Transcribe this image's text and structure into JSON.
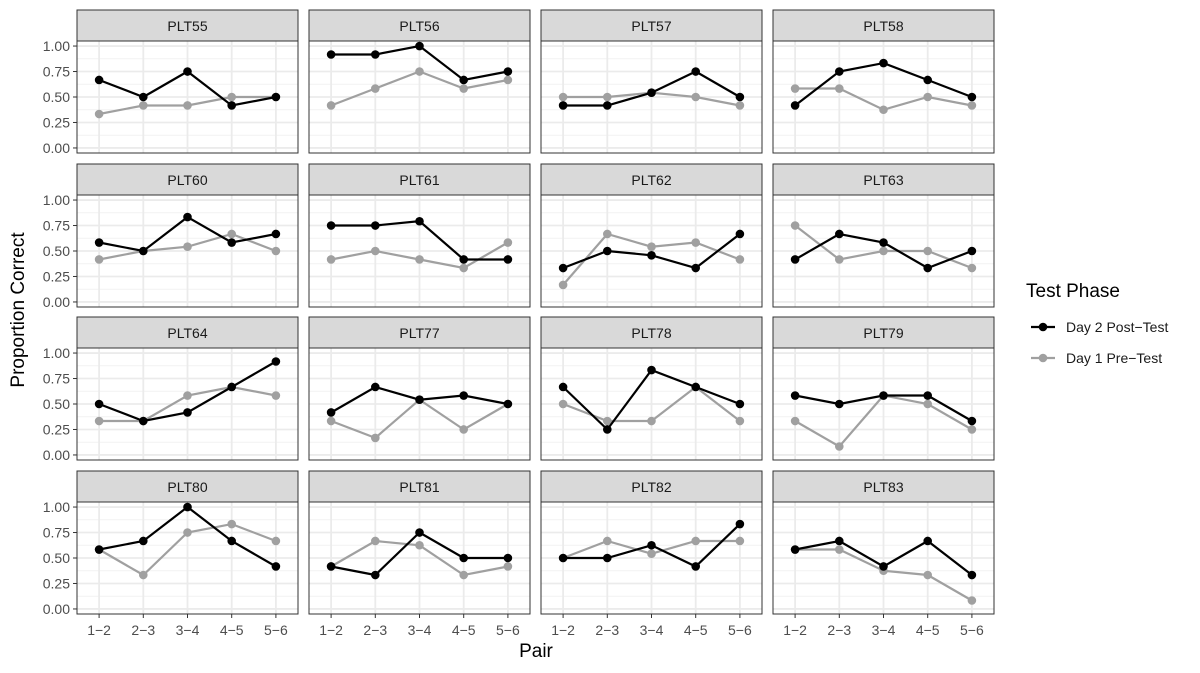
{
  "chart_data": {
    "type": "line",
    "xlabel": "Pair",
    "ylabel": "Proportion Correct",
    "categories": [
      "1−2",
      "2−3",
      "3−4",
      "4−5",
      "5−6"
    ],
    "yticks": [
      "0.00",
      "0.25",
      "0.50",
      "0.75",
      "1.00"
    ],
    "ylim": [
      0,
      1
    ],
    "grid": true,
    "legend": {
      "title": "Test Phase",
      "position": "right",
      "entries": [
        {
          "name": "Day 2 Post−Test",
          "color": "#000000"
        },
        {
          "name": "Day 1 Pre−Test",
          "color": "#a0a0a0"
        }
      ]
    },
    "panels": [
      {
        "title": "PLT55",
        "series": [
          {
            "name": "Day 2 Post−Test",
            "values": [
              0.667,
              0.5,
              0.75,
              0.417,
              0.5
            ]
          },
          {
            "name": "Day 1 Pre−Test",
            "values": [
              0.333,
              0.417,
              0.417,
              0.5,
              0.5
            ]
          }
        ]
      },
      {
        "title": "PLT56",
        "series": [
          {
            "name": "Day 2 Post−Test",
            "values": [
              0.917,
              0.917,
              1.0,
              0.667,
              0.75
            ]
          },
          {
            "name": "Day 1 Pre−Test",
            "values": [
              0.417,
              0.583,
              0.75,
              0.583,
              0.667
            ]
          }
        ]
      },
      {
        "title": "PLT57",
        "series": [
          {
            "name": "Day 2 Post−Test",
            "values": [
              0.417,
              0.417,
              0.542,
              0.75,
              0.5
            ]
          },
          {
            "name": "Day 1 Pre−Test",
            "values": [
              0.5,
              0.5,
              0.542,
              0.5,
              0.417
            ]
          }
        ]
      },
      {
        "title": "PLT58",
        "series": [
          {
            "name": "Day 2 Post−Test",
            "values": [
              0.417,
              0.75,
              0.833,
              0.667,
              0.5
            ]
          },
          {
            "name": "Day 1 Pre−Test",
            "values": [
              0.583,
              0.583,
              0.375,
              0.5,
              0.417
            ]
          }
        ]
      },
      {
        "title": "PLT60",
        "series": [
          {
            "name": "Day 2 Post−Test",
            "values": [
              0.583,
              0.5,
              0.833,
              0.583,
              0.667
            ]
          },
          {
            "name": "Day 1 Pre−Test",
            "values": [
              0.417,
              0.5,
              0.542,
              0.667,
              0.5
            ]
          }
        ]
      },
      {
        "title": "PLT61",
        "series": [
          {
            "name": "Day 2 Post−Test",
            "values": [
              0.75,
              0.75,
              0.792,
              0.417,
              0.417
            ]
          },
          {
            "name": "Day 1 Pre−Test",
            "values": [
              0.417,
              0.5,
              0.417,
              0.333,
              0.583
            ]
          }
        ]
      },
      {
        "title": "PLT62",
        "series": [
          {
            "name": "Day 2 Post−Test",
            "values": [
              0.333,
              0.5,
              0.458,
              0.333,
              0.667
            ]
          },
          {
            "name": "Day 1 Pre−Test",
            "values": [
              0.167,
              0.667,
              0.542,
              0.583,
              0.417
            ]
          }
        ]
      },
      {
        "title": "PLT63",
        "series": [
          {
            "name": "Day 2 Post−Test",
            "values": [
              0.417,
              0.667,
              0.583,
              0.333,
              0.5
            ]
          },
          {
            "name": "Day 1 Pre−Test",
            "values": [
              0.75,
              0.417,
              0.5,
              0.5,
              0.333
            ]
          }
        ]
      },
      {
        "title": "PLT64",
        "series": [
          {
            "name": "Day 2 Post−Test",
            "values": [
              0.5,
              0.333,
              0.417,
              0.667,
              0.917
            ]
          },
          {
            "name": "Day 1 Pre−Test",
            "values": [
              0.333,
              0.333,
              0.583,
              0.667,
              0.583
            ]
          }
        ]
      },
      {
        "title": "PLT77",
        "series": [
          {
            "name": "Day 2 Post−Test",
            "values": [
              0.417,
              0.667,
              0.542,
              0.583,
              0.5
            ]
          },
          {
            "name": "Day 1 Pre−Test",
            "values": [
              0.333,
              0.167,
              0.542,
              0.25,
              0.5
            ]
          }
        ]
      },
      {
        "title": "PLT78",
        "series": [
          {
            "name": "Day 2 Post−Test",
            "values": [
              0.667,
              0.25,
              0.833,
              0.667,
              0.5
            ]
          },
          {
            "name": "Day 1 Pre−Test",
            "values": [
              0.5,
              0.333,
              0.333,
              0.667,
              0.333
            ]
          }
        ]
      },
      {
        "title": "PLT79",
        "series": [
          {
            "name": "Day 2 Post−Test",
            "values": [
              0.583,
              0.5,
              0.583,
              0.583,
              0.333
            ]
          },
          {
            "name": "Day 1 Pre−Test",
            "values": [
              0.333,
              0.083,
              0.583,
              0.5,
              0.25
            ]
          }
        ]
      },
      {
        "title": "PLT80",
        "series": [
          {
            "name": "Day 2 Post−Test",
            "values": [
              0.583,
              0.667,
              1.0,
              0.667,
              0.417
            ]
          },
          {
            "name": "Day 1 Pre−Test",
            "values": [
              0.583,
              0.333,
              0.75,
              0.833,
              0.667
            ]
          }
        ]
      },
      {
        "title": "PLT81",
        "series": [
          {
            "name": "Day 2 Post−Test",
            "values": [
              0.417,
              0.333,
              0.75,
              0.5,
              0.5
            ]
          },
          {
            "name": "Day 1 Pre−Test",
            "values": [
              0.417,
              0.667,
              0.625,
              0.333,
              0.417
            ]
          }
        ]
      },
      {
        "title": "PLT82",
        "series": [
          {
            "name": "Day 2 Post−Test",
            "values": [
              0.5,
              0.5,
              0.625,
              0.417,
              0.833
            ]
          },
          {
            "name": "Day 1 Pre−Test",
            "values": [
              0.5,
              0.667,
              0.542,
              0.667,
              0.667
            ]
          }
        ]
      },
      {
        "title": "PLT83",
        "series": [
          {
            "name": "Day 2 Post−Test",
            "values": [
              0.583,
              0.667,
              0.417,
              0.667,
              0.333
            ]
          },
          {
            "name": "Day 1 Pre−Test",
            "values": [
              0.583,
              0.583,
              0.375,
              0.333,
              0.083
            ]
          }
        ]
      }
    ]
  }
}
